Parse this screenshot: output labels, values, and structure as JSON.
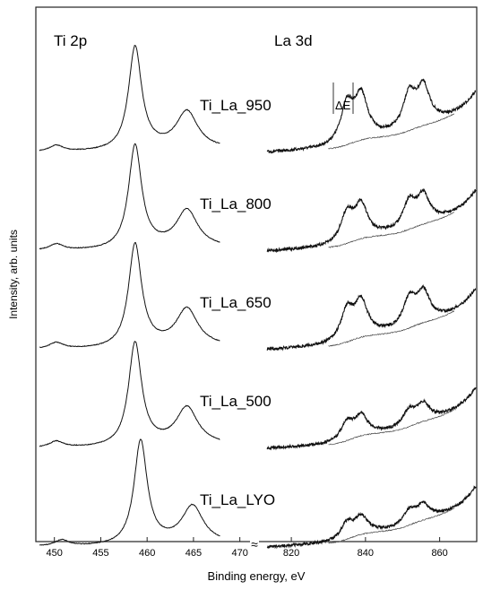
{
  "chart_data": {
    "type": "line",
    "xlabel": "Binding energy, eV",
    "ylabel": "Intensity, arb. units",
    "axis_break": "≈",
    "panels": [
      {
        "title": "Ti 2p",
        "xlim": [
          448,
          471
        ],
        "ticks": [
          450,
          455,
          460,
          465,
          470
        ],
        "peaks": [
          {
            "center": 450.2,
            "width": 0.9,
            "height": 0.06
          },
          {
            "center": 458.7,
            "width": 0.85,
            "height": 1.0
          },
          {
            "center": 464.3,
            "width": 1.4,
            "height": 0.36
          }
        ]
      },
      {
        "title": "La 3d",
        "xlim": [
          812,
          870
        ],
        "ticks": [
          820,
          840,
          860
        ],
        "peaks": [
          {
            "center": 835.0,
            "width": 1.3,
            "height": 0.5
          },
          {
            "center": 838.8,
            "width": 1.3,
            "height": 0.55
          },
          {
            "center": 851.8,
            "width": 1.3,
            "height": 0.45
          },
          {
            "center": 855.6,
            "width": 1.3,
            "height": 0.48
          }
        ]
      }
    ],
    "annotation": "ΔE",
    "series": [
      {
        "name": "Ti_La_950",
        "ti_shift": 0.0,
        "la_scale": 1.0
      },
      {
        "name": "Ti_La_800",
        "ti_shift": 0.0,
        "la_scale": 0.75
      },
      {
        "name": "Ti_La_650",
        "ti_shift": 0.0,
        "la_scale": 0.8
      },
      {
        "name": "Ti_La_500",
        "ti_shift": 0.0,
        "la_scale": 0.45
      },
      {
        "name": "Ti_La_LYO",
        "ti_shift": 0.6,
        "la_scale": 0.4
      }
    ]
  }
}
